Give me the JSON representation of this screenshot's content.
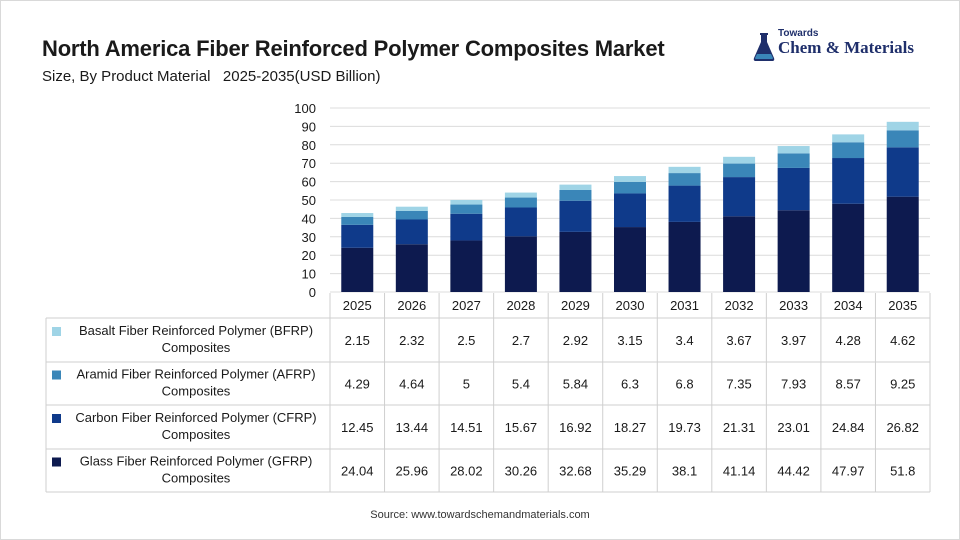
{
  "title": "North America Fiber Reinforced Polymer Composites Market",
  "subtitle": "Size, By Product Material   2025-2035(USD Billion)",
  "logo": {
    "top": "Towards",
    "main": "Chem & Materials"
  },
  "source": "Source: www.towardschemandmaterials.com",
  "colors": {
    "glass": "#0d1a4f",
    "carbon": "#0f3a8a",
    "aramid": "#3a86b8",
    "basalt": "#9fd4e6",
    "grid": "#dcdcdc",
    "table_line": "#cfcfcf"
  },
  "chart_data": {
    "type": "bar",
    "stacked": true,
    "categories": [
      "2025",
      "2026",
      "2027",
      "2028",
      "2029",
      "2030",
      "2031",
      "2032",
      "2033",
      "2034",
      "2035"
    ],
    "ylim": [
      0,
      100
    ],
    "yticks": [
      "0",
      "10",
      "20",
      "30",
      "40",
      "50",
      "60",
      "70",
      "80",
      "90",
      "100"
    ],
    "grid": true,
    "series": [
      {
        "name": "Glass Fiber Reinforced Polymer (GFRP) Composites",
        "color": "#0d1a4f",
        "values": [
          24.04,
          25.96,
          28.02,
          30.26,
          32.68,
          35.29,
          38.1,
          41.14,
          44.42,
          47.97,
          51.8
        ],
        "labels": [
          "24.04",
          "25.96",
          "28.02",
          "30.26",
          "32.68",
          "35.29",
          "38.1",
          "41.14",
          "44.42",
          "47.97",
          "51.8"
        ]
      },
      {
        "name": "Carbon Fiber Reinforced Polymer (CFRP) Composites",
        "color": "#0f3a8a",
        "values": [
          12.45,
          13.44,
          14.51,
          15.67,
          16.92,
          18.27,
          19.73,
          21.31,
          23.01,
          24.84,
          26.82
        ],
        "labels": [
          "12.45",
          "13.44",
          "14.51",
          "15.67",
          "16.92",
          "18.27",
          "19.73",
          "21.31",
          "23.01",
          "24.84",
          "26.82"
        ]
      },
      {
        "name": "Aramid Fiber Reinforced Polymer (AFRP) Composites",
        "color": "#3a86b8",
        "values": [
          4.29,
          4.64,
          5,
          5.4,
          5.84,
          6.3,
          6.8,
          7.35,
          7.93,
          8.57,
          9.25
        ],
        "labels": [
          "4.29",
          "4.64",
          "5",
          "5.4",
          "5.84",
          "6.3",
          "6.8",
          "7.35",
          "7.93",
          "8.57",
          "9.25"
        ]
      },
      {
        "name": "Basalt Fiber Reinforced Polymer (BFRP) Composites",
        "color": "#9fd4e6",
        "values": [
          2.15,
          2.32,
          2.5,
          2.7,
          2.92,
          3.15,
          3.4,
          3.67,
          3.97,
          4.28,
          4.62
        ],
        "labels": [
          "2.15",
          "2.32",
          "2.5",
          "2.7",
          "2.92",
          "3.15",
          "3.4",
          "3.67",
          "3.97",
          "4.28",
          "4.62"
        ]
      }
    ],
    "table_order": [
      {
        "series": 3,
        "line1": "Basalt Fiber Reinforced Polymer (BFRP)",
        "line2": "Composites"
      },
      {
        "series": 2,
        "line1": "Aramid Fiber Reinforced Polymer (AFRP)",
        "line2": "Composites"
      },
      {
        "series": 1,
        "line1": "Carbon Fiber Reinforced Polymer (CFRP)",
        "line2": "Composites"
      },
      {
        "series": 0,
        "line1": "Glass Fiber Reinforced Polymer (GFRP)",
        "line2": "Composites"
      }
    ]
  }
}
